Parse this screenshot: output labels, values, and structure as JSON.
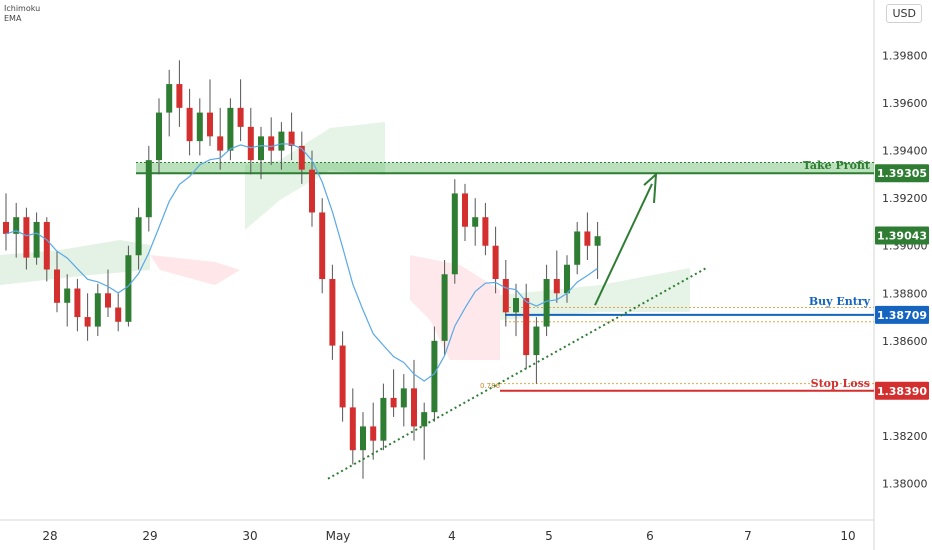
{
  "indicators": [
    "Ichimoku",
    "EMA"
  ],
  "currency": "USD",
  "chart_data": {
    "type": "candlestick",
    "y_ticks": [
      "1.39800",
      "1.39600",
      "1.39400",
      "1.39200",
      "1.39000",
      "1.38800",
      "1.38600",
      "1.38400",
      "1.38200",
      "1.38000"
    ],
    "y_tick_values": [
      1.398,
      1.396,
      1.394,
      1.392,
      1.39,
      1.388,
      1.386,
      1.384,
      1.382,
      1.38
    ],
    "x_ticks": [
      "28",
      "29",
      "30",
      "May",
      "4",
      "5",
      "6",
      "7",
      "10"
    ],
    "ylim": [
      1.3788,
      1.4
    ],
    "levels": {
      "take_profit": {
        "label": "Take Profit",
        "value": "1.39305",
        "num": 1.39305,
        "color": "#2e7d32"
      },
      "current": {
        "label": "",
        "value": "1.39043",
        "num": 1.39043,
        "color": "#2e7d32"
      },
      "buy_entry": {
        "label": "Buy Entry",
        "value": "1.38709",
        "num": 1.38709,
        "color": "#1565c0"
      },
      "stop_loss": {
        "label": "Stop Loss",
        "value": "1.38390",
        "num": 1.3839,
        "color": "#d32f2f"
      }
    },
    "fib_labels": [
      "0.786"
    ],
    "colors": {
      "up": "#2e7d32",
      "down": "#d32f2f",
      "ema": "#5aa9e6",
      "zone": "#66bb6a"
    },
    "candles": [
      [
        1.391,
        1.3922,
        1.3898,
        1.3905
      ],
      [
        1.3905,
        1.3918,
        1.3895,
        1.3912
      ],
      [
        1.3912,
        1.3916,
        1.389,
        1.3895
      ],
      [
        1.3895,
        1.3914,
        1.3892,
        1.391
      ],
      [
        1.391,
        1.3912,
        1.3885,
        1.389
      ],
      [
        1.389,
        1.3898,
        1.3872,
        1.3876
      ],
      [
        1.3876,
        1.3888,
        1.3866,
        1.3882
      ],
      [
        1.3882,
        1.3886,
        1.3864,
        1.387
      ],
      [
        1.387,
        1.388,
        1.386,
        1.3866
      ],
      [
        1.3866,
        1.3884,
        1.3862,
        1.388
      ],
      [
        1.388,
        1.389,
        1.387,
        1.3874
      ],
      [
        1.3874,
        1.388,
        1.3864,
        1.3868
      ],
      [
        1.3868,
        1.39,
        1.3866,
        1.3896
      ],
      [
        1.3896,
        1.3916,
        1.389,
        1.3912
      ],
      [
        1.3912,
        1.3942,
        1.3906,
        1.3936
      ],
      [
        1.3936,
        1.3962,
        1.393,
        1.3956
      ],
      [
        1.3956,
        1.3974,
        1.3946,
        1.3968
      ],
      [
        1.3968,
        1.3978,
        1.395,
        1.3958
      ],
      [
        1.3958,
        1.3966,
        1.3938,
        1.3944
      ],
      [
        1.3944,
        1.3962,
        1.3938,
        1.3956
      ],
      [
        1.3956,
        1.397,
        1.3942,
        1.3946
      ],
      [
        1.3946,
        1.3958,
        1.3932,
        1.394
      ],
      [
        1.394,
        1.3962,
        1.3936,
        1.3958
      ],
      [
        1.3958,
        1.397,
        1.3944,
        1.395
      ],
      [
        1.395,
        1.3958,
        1.393,
        1.3936
      ],
      [
        1.3936,
        1.395,
        1.3928,
        1.3946
      ],
      [
        1.3946,
        1.3954,
        1.3934,
        1.394
      ],
      [
        1.394,
        1.3952,
        1.3932,
        1.3948
      ],
      [
        1.3948,
        1.3956,
        1.3936,
        1.3942
      ],
      [
        1.3942,
        1.3948,
        1.3926,
        1.3932
      ],
      [
        1.3932,
        1.394,
        1.3908,
        1.3914
      ],
      [
        1.3914,
        1.392,
        1.388,
        1.3886
      ],
      [
        1.3886,
        1.3892,
        1.3852,
        1.3858
      ],
      [
        1.3858,
        1.3864,
        1.3826,
        1.3832
      ],
      [
        1.3832,
        1.384,
        1.3808,
        1.3814
      ],
      [
        1.3814,
        1.383,
        1.3802,
        1.3824
      ],
      [
        1.3824,
        1.3834,
        1.381,
        1.3818
      ],
      [
        1.3818,
        1.3842,
        1.3814,
        1.3836
      ],
      [
        1.3836,
        1.3848,
        1.3828,
        1.3832
      ],
      [
        1.3832,
        1.3846,
        1.3824,
        1.384
      ],
      [
        1.384,
        1.3852,
        1.3818,
        1.3824
      ],
      [
        1.3824,
        1.3834,
        1.381,
        1.383
      ],
      [
        1.383,
        1.3866,
        1.3826,
        1.386
      ],
      [
        1.386,
        1.3894,
        1.3854,
        1.3888
      ],
      [
        1.3888,
        1.3928,
        1.3884,
        1.3922
      ],
      [
        1.3922,
        1.3926,
        1.3902,
        1.3908
      ],
      [
        1.3908,
        1.392,
        1.39,
        1.3912
      ],
      [
        1.3912,
        1.3918,
        1.3896,
        1.39
      ],
      [
        1.39,
        1.3908,
        1.388,
        1.3886
      ],
      [
        1.3886,
        1.3894,
        1.3866,
        1.3872
      ],
      [
        1.3872,
        1.3884,
        1.3862,
        1.3878
      ],
      [
        1.3878,
        1.3884,
        1.3848,
        1.3854
      ],
      [
        1.3854,
        1.387,
        1.3842,
        1.3866
      ],
      [
        1.3866,
        1.3892,
        1.3862,
        1.3886
      ],
      [
        1.3886,
        1.3898,
        1.3876,
        1.388
      ],
      [
        1.388,
        1.3896,
        1.3876,
        1.3892
      ],
      [
        1.3892,
        1.391,
        1.3888,
        1.3906
      ],
      [
        1.3906,
        1.3914,
        1.3894,
        1.39
      ],
      [
        1.39,
        1.391,
        1.3886,
        1.3904
      ]
    ]
  }
}
